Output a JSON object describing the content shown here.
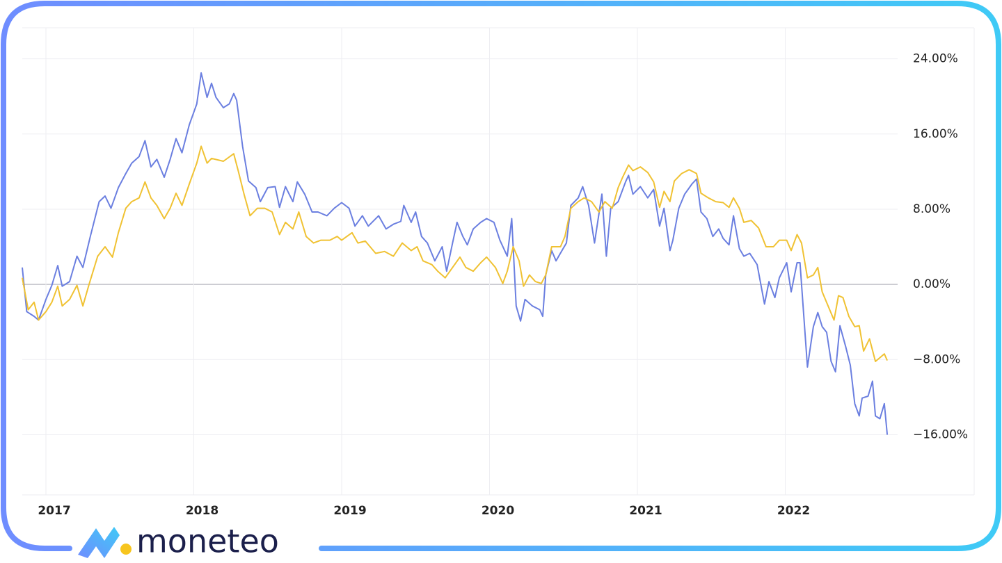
{
  "chart_data": {
    "type": "line",
    "xlim": [
      2016.84,
      2022.76
    ],
    "xticks": [
      2017,
      2018,
      2019,
      2020,
      2021,
      2022
    ],
    "ylim": [
      -22.4,
      27.3
    ],
    "yticks": [
      {
        "value": 24,
        "label": "24.00%"
      },
      {
        "value": 16,
        "label": "16.00%"
      },
      {
        "value": 8,
        "label": "8.00%"
      },
      {
        "value": 0,
        "label": "0.00%"
      },
      {
        "value": -8,
        "label": "−8.00%"
      },
      {
        "value": -16,
        "label": "−16.00%"
      }
    ],
    "grid": true,
    "series": [
      {
        "color": "#6b7fe0",
        "x": [
          2016.84,
          2016.87,
          2016.92,
          2016.95,
          2017.0,
          2017.04,
          2017.08,
          2017.11,
          2017.16,
          2017.21,
          2017.25,
          2017.3,
          2017.36,
          2017.4,
          2017.44,
          2017.49,
          2017.54,
          2017.58,
          2017.63,
          2017.67,
          2017.71,
          2017.75,
          2017.8,
          2017.84,
          2017.88,
          2017.92,
          2017.97,
          2018.02,
          2018.05,
          2018.09,
          2018.12,
          2018.15,
          2018.2,
          2018.24,
          2018.27,
          2018.29,
          2018.33,
          2018.37,
          2018.42,
          2018.45,
          2018.5,
          2018.55,
          2018.58,
          2018.62,
          2018.67,
          2018.7,
          2018.75,
          2018.8,
          2018.84,
          2018.9,
          2018.95,
          2019.0,
          2019.05,
          2019.09,
          2019.14,
          2019.18,
          2019.25,
          2019.3,
          2019.35,
          2019.4,
          2019.42,
          2019.47,
          2019.5,
          2019.54,
          2019.58,
          2019.63,
          2019.68,
          2019.71,
          2019.75,
          2019.78,
          2019.82,
          2019.85,
          2019.89,
          2019.94,
          2019.98,
          2020.03,
          2020.07,
          2020.12,
          2020.15,
          2020.18,
          2020.21,
          2020.24,
          2020.29,
          2020.34,
          2020.36,
          2020.38,
          2020.42,
          2020.45,
          2020.49,
          2020.52,
          2020.55,
          2020.6,
          2020.63,
          2020.67,
          2020.71,
          2020.76,
          2020.79,
          2020.82,
          2020.87,
          2020.92,
          2020.94,
          2020.97,
          2021.02,
          2021.07,
          2021.11,
          2021.15,
          2021.18,
          2021.22,
          2021.24,
          2021.28,
          2021.32,
          2021.37,
          2021.4,
          2021.43,
          2021.47,
          2021.51,
          2021.55,
          2021.58,
          2021.62,
          2021.65,
          2021.69,
          2021.72,
          2021.76,
          2021.81,
          2021.86,
          2021.89,
          2021.93,
          2021.96,
          2022.01,
          2022.04,
          2022.08,
          2022.1,
          2022.15,
          2022.19,
          2022.22,
          2022.25,
          2022.28,
          2022.31,
          2022.34,
          2022.37,
          2022.41,
          2022.44,
          2022.47,
          2022.5,
          2022.52,
          2022.56,
          2022.59,
          2022.61,
          2022.64,
          2022.67,
          2022.69
        ],
        "values": [
          1.8,
          -2.9,
          -3.4,
          -3.8,
          -1.6,
          -0.1,
          2.0,
          -0.2,
          0.3,
          3.0,
          1.8,
          5.1,
          8.8,
          9.4,
          8.1,
          10.3,
          11.8,
          12.9,
          13.6,
          15.3,
          12.5,
          13.3,
          11.4,
          13.3,
          15.5,
          14.0,
          17.0,
          19.2,
          22.5,
          19.9,
          21.4,
          19.9,
          18.8,
          19.2,
          20.3,
          19.6,
          14.7,
          11.0,
          10.3,
          8.8,
          10.3,
          10.4,
          8.2,
          10.4,
          8.8,
          10.9,
          9.6,
          7.7,
          7.7,
          7.3,
          8.1,
          8.7,
          8.1,
          6.2,
          7.3,
          6.2,
          7.3,
          5.9,
          6.4,
          6.7,
          8.4,
          6.6,
          7.7,
          5.1,
          4.4,
          2.5,
          4.0,
          1.4,
          4.4,
          6.6,
          5.1,
          4.2,
          5.9,
          6.6,
          7.0,
          6.6,
          4.7,
          3.0,
          7.0,
          -2.3,
          -3.9,
          -1.6,
          -2.3,
          -2.7,
          -3.4,
          1.0,
          3.6,
          2.5,
          3.6,
          4.4,
          8.4,
          9.2,
          10.4,
          8.4,
          4.4,
          9.6,
          3.0,
          8.1,
          8.8,
          10.9,
          11.6,
          9.6,
          10.4,
          9.2,
          10.1,
          6.2,
          8.1,
          3.6,
          4.7,
          8.1,
          9.6,
          10.7,
          11.2,
          7.7,
          7.0,
          5.1,
          5.9,
          4.9,
          4.2,
          7.3,
          3.8,
          3.0,
          3.3,
          2.1,
          -2.1,
          0.3,
          -1.4,
          0.7,
          2.3,
          -0.8,
          2.3,
          2.3,
          -8.8,
          -4.5,
          -3.0,
          -4.5,
          -5.1,
          -8.2,
          -9.3,
          -4.4,
          -6.7,
          -8.6,
          -12.7,
          -14.0,
          -12.1,
          -11.9,
          -10.3,
          -14.0,
          -14.3,
          -12.7,
          -16.0
        ]
      },
      {
        "color": "#f0c233",
        "x": [
          2016.84,
          2016.88,
          2016.92,
          2016.95,
          2017.0,
          2017.04,
          2017.08,
          2017.11,
          2017.16,
          2017.21,
          2017.25,
          2017.29,
          2017.35,
          2017.4,
          2017.45,
          2017.49,
          2017.54,
          2017.58,
          2017.63,
          2017.67,
          2017.71,
          2017.75,
          2017.8,
          2017.84,
          2017.88,
          2017.92,
          2017.97,
          2018.02,
          2018.05,
          2018.09,
          2018.12,
          2018.2,
          2018.27,
          2018.3,
          2018.34,
          2018.38,
          2018.43,
          2018.48,
          2018.53,
          2018.58,
          2018.62,
          2018.67,
          2018.71,
          2018.76,
          2018.81,
          2018.86,
          2018.92,
          2018.97,
          2019.0,
          2019.07,
          2019.11,
          2019.16,
          2019.23,
          2019.29,
          2019.35,
          2019.41,
          2019.47,
          2019.51,
          2019.55,
          2019.61,
          2019.65,
          2019.7,
          2019.75,
          2019.8,
          2019.84,
          2019.89,
          2019.94,
          2019.98,
          2020.04,
          2020.09,
          2020.12,
          2020.16,
          2020.2,
          2020.23,
          2020.27,
          2020.31,
          2020.35,
          2020.38,
          2020.42,
          2020.48,
          2020.51,
          2020.55,
          2020.6,
          2020.64,
          2020.69,
          2020.74,
          2020.78,
          2020.83,
          2020.87,
          2020.9,
          2020.94,
          2020.97,
          2021.02,
          2021.07,
          2021.11,
          2021.15,
          2021.18,
          2021.22,
          2021.25,
          2021.3,
          2021.35,
          2021.4,
          2021.43,
          2021.48,
          2021.53,
          2021.58,
          2021.62,
          2021.65,
          2021.69,
          2021.72,
          2021.77,
          2021.82,
          2021.87,
          2021.92,
          2021.96,
          2022.01,
          2022.04,
          2022.08,
          2022.11,
          2022.15,
          2022.19,
          2022.22,
          2022.25,
          2022.29,
          2022.33,
          2022.36,
          2022.39,
          2022.43,
          2022.47,
          2022.5,
          2022.53,
          2022.57,
          2022.61,
          2022.64,
          2022.67,
          2022.69
        ],
        "values": [
          0.7,
          -2.7,
          -1.9,
          -3.8,
          -2.9,
          -1.9,
          -0.2,
          -2.3,
          -1.6,
          -0.1,
          -2.3,
          -0.1,
          3.0,
          4.0,
          2.9,
          5.5,
          8.1,
          8.8,
          9.2,
          10.9,
          9.2,
          8.4,
          7.0,
          8.1,
          9.7,
          8.4,
          10.7,
          12.9,
          14.7,
          12.9,
          13.4,
          13.1,
          13.9,
          12.1,
          9.6,
          7.3,
          8.1,
          8.1,
          7.7,
          5.3,
          6.6,
          5.9,
          7.7,
          5.1,
          4.4,
          4.7,
          4.7,
          5.1,
          4.7,
          5.5,
          4.4,
          4.6,
          3.3,
          3.5,
          3.0,
          4.4,
          3.6,
          4.0,
          2.5,
          2.1,
          1.4,
          0.7,
          1.8,
          2.9,
          1.8,
          1.4,
          2.3,
          2.9,
          1.8,
          0.1,
          1.4,
          4.0,
          2.5,
          -0.2,
          1.0,
          0.3,
          0.1,
          1.0,
          4.0,
          4.0,
          5.1,
          8.1,
          8.8,
          9.2,
          8.8,
          7.7,
          8.8,
          8.1,
          10.3,
          11.4,
          12.7,
          12.1,
          12.5,
          11.9,
          10.9,
          8.2,
          9.9,
          8.8,
          11.0,
          11.8,
          12.2,
          11.8,
          9.7,
          9.2,
          8.8,
          8.7,
          8.2,
          9.2,
          8.1,
          6.6,
          6.8,
          6.0,
          4.0,
          4.0,
          4.7,
          4.7,
          3.6,
          5.3,
          4.4,
          0.7,
          1.0,
          1.8,
          -0.8,
          -2.3,
          -3.8,
          -1.2,
          -1.4,
          -3.4,
          -4.5,
          -4.4,
          -7.1,
          -5.8,
          -8.2,
          -7.8,
          -7.4,
          -8.1
        ]
      }
    ]
  },
  "logo_text": "moneteo"
}
